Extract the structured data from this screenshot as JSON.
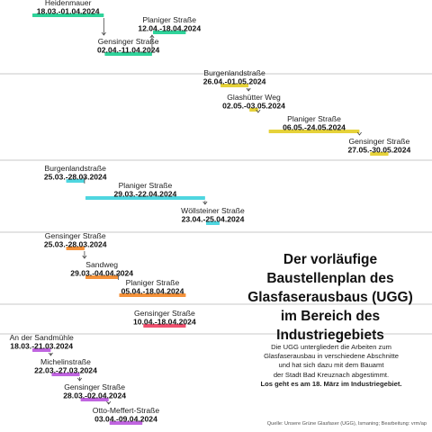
{
  "headline": [
    "Der vorläufige",
    "Baustellenplan des",
    "Glasfaserausbaus (UGG)",
    "im Bereich des",
    "Industriegebiets"
  ],
  "description": [
    "Die UGG untergliedert die Arbeiten zum",
    "Glasfaserausbau in verschiedene Abschnitte",
    "und hat sich dazu mit dem Bauamt",
    "der Stadt Bad Kreuznach abgestimmt."
  ],
  "description_highlight": "Los geht es am 18. März im Industriegebiet.",
  "source": "Quelle: Unsere Grüne Glasfaser (UGG), Ismaning; Bearbeitung: vrm/ap",
  "chart_data": {
    "type": "gantt",
    "x_axis": "date",
    "x_range": [
      "2024-03-18",
      "2024-05-30"
    ],
    "groups": [
      {
        "color": "#2fd39a",
        "tasks": [
          {
            "name": "Heidenmauer",
            "dates": "18.03.-01.04.2024",
            "start": "2024-03-18",
            "end": "2024-04-01"
          },
          {
            "name": "Gensinger Straße",
            "dates": "02.04.-11.04.2024",
            "start": "2024-04-02",
            "end": "2024-04-11"
          },
          {
            "name": "Planiger Straße",
            "dates": "12.04.-18.04.2024",
            "start": "2024-04-12",
            "end": "2024-04-18"
          }
        ]
      },
      {
        "color": "#e6d23a",
        "tasks": [
          {
            "name": "Burgenlandstraße",
            "dates": "26.04.-01.05.2024",
            "start": "2024-04-26",
            "end": "2024-05-01"
          },
          {
            "name": "Glashütter Weg",
            "dates": "02.05.-03.05.2024",
            "start": "2024-05-02",
            "end": "2024-05-03"
          },
          {
            "name": "Planiger Straße",
            "dates": "06.05.-24.05.2024",
            "start": "2024-05-06",
            "end": "2024-05-24"
          },
          {
            "name": "Gensinger Straße",
            "dates": "27.05.-30.05.2024",
            "start": "2024-05-27",
            "end": "2024-05-30"
          }
        ]
      },
      {
        "color": "#4fd6e0",
        "tasks": [
          {
            "name": "Burgenlandstraße",
            "dates": "25.03.-28.03.2024",
            "start": "2024-03-25",
            "end": "2024-03-28"
          },
          {
            "name": "Planiger Straße",
            "dates": "29.03.-22.04.2024",
            "start": "2024-03-29",
            "end": "2024-04-22"
          },
          {
            "name": "Wöllsteiner Straße",
            "dates": "23.04.-25.04.2024",
            "start": "2024-04-23",
            "end": "2024-04-25"
          }
        ]
      },
      {
        "color": "#f5923a",
        "tasks": [
          {
            "name": "Gensinger Straße",
            "dates": "25.03.-28.03.2024",
            "start": "2024-03-25",
            "end": "2024-03-28"
          },
          {
            "name": "Sandweg",
            "dates": "29.03.-04.04.2024",
            "start": "2024-03-29",
            "end": "2024-04-04"
          },
          {
            "name": "Planiger Straße",
            "dates": "05.04.-18.04.2024",
            "start": "2024-04-05",
            "end": "2024-04-18"
          }
        ]
      },
      {
        "color": "#f0506e",
        "tasks": [
          {
            "name": "Gensinger Straße",
            "dates": "10.04.-18.04.2024",
            "start": "2024-04-10",
            "end": "2024-04-18"
          }
        ]
      },
      {
        "color": "#c065e0",
        "tasks": [
          {
            "name": "An der Sandmühle",
            "dates": "18.03.-21.03.2024",
            "start": "2024-03-18",
            "end": "2024-03-21"
          },
          {
            "name": "Michelinstraße",
            "dates": "22.03.-27.03.2024",
            "start": "2024-03-22",
            "end": "2024-03-27"
          },
          {
            "name": "Gensinger Straße",
            "dates": "28.03.-02.04.2024",
            "start": "2024-03-28",
            "end": "2024-04-02"
          },
          {
            "name": "Otto-Meffert-Straße",
            "dates": "03.04.-09.04.2024",
            "start": "2024-04-03",
            "end": "2024-04-09"
          }
        ]
      }
    ]
  }
}
